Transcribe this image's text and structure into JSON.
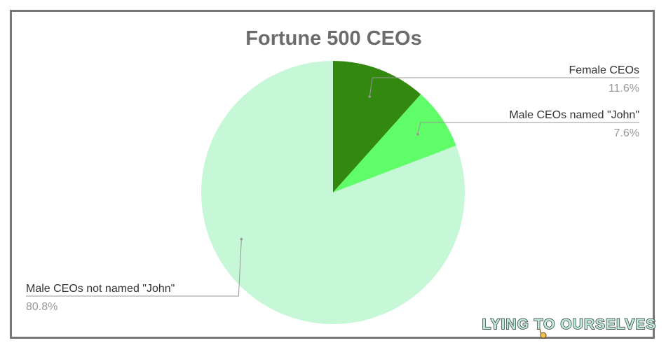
{
  "chart_data": {
    "type": "pie",
    "title": "Fortune 500 CEOs",
    "slices": [
      {
        "label": "Female CEOs",
        "value": 11.6,
        "value_label": "11.6%",
        "color": "#33880f"
      },
      {
        "label": "Male CEOs named \"John\"",
        "value": 7.6,
        "value_label": "7.6%",
        "color": "#5ffd68"
      },
      {
        "label": "Male CEOs not named \"John\"",
        "value": 80.8,
        "value_label": "80.8%",
        "color": "#c6f7d6"
      }
    ],
    "legend": "none",
    "label_style": "leader-lines"
  },
  "watermark": {
    "text": "LYING TO OURSELVES"
  },
  "colors": {
    "title": "#6b6b6b",
    "label": "#333333",
    "value_label": "#999999",
    "leader": "#999999",
    "frame": "#777777"
  }
}
